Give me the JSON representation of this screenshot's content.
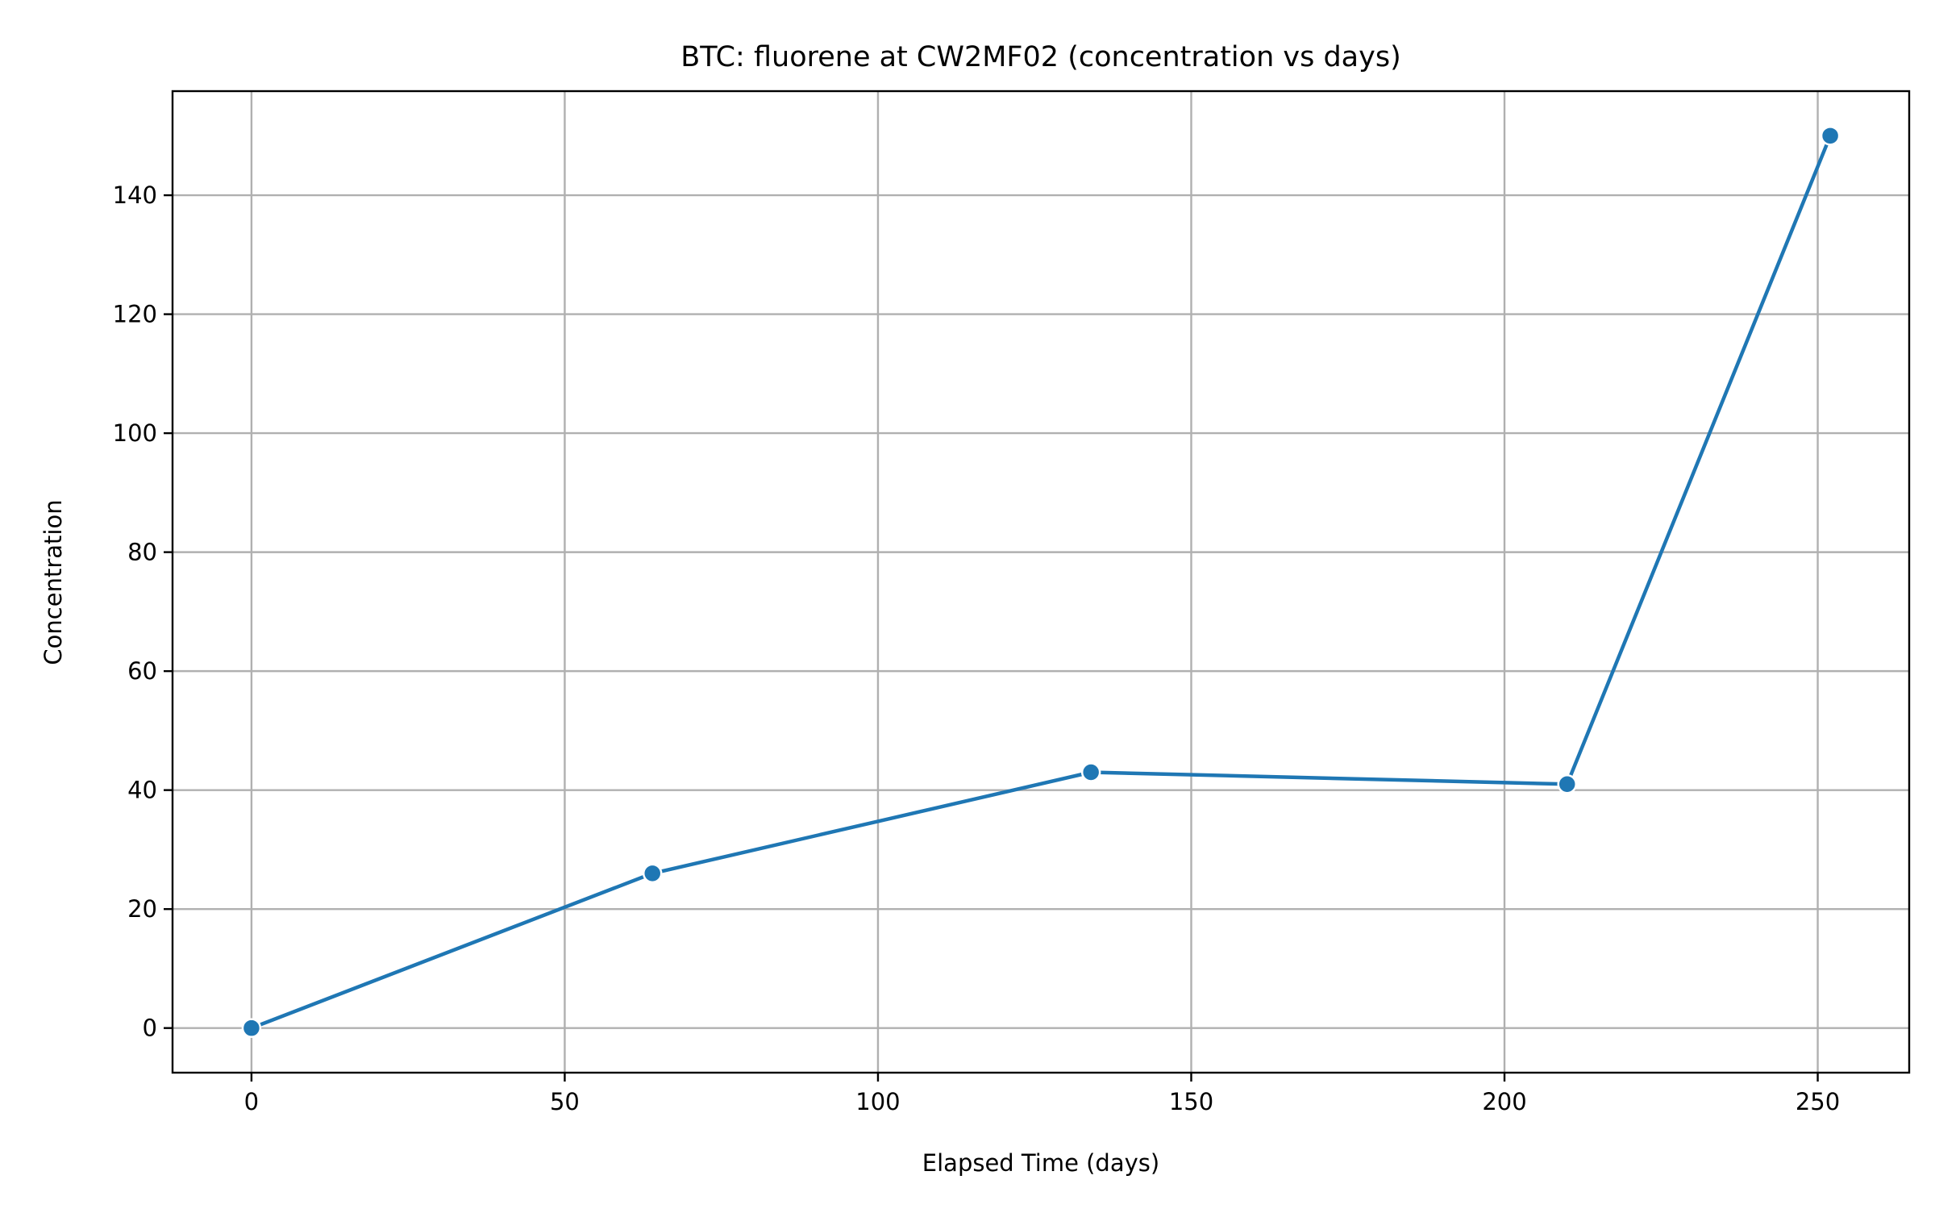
{
  "chart_data": {
    "type": "line",
    "title": "BTC: fluorene at CW2MF02 (concentration vs days)",
    "xlabel": "Elapsed Time (days)",
    "ylabel": "Concentration",
    "xlim": [
      -12.6,
      264.6
    ],
    "ylim": [
      -7.5,
      157.5
    ],
    "xticks": [
      0,
      50,
      100,
      150,
      200,
      250
    ],
    "yticks": [
      0,
      20,
      40,
      60,
      80,
      100,
      120,
      140
    ],
    "grid": true,
    "legend": "none",
    "series": [
      {
        "color": "#1f77b4",
        "marker": "circle",
        "x": [
          0,
          64,
          134,
          210,
          252
        ],
        "y": [
          0,
          26,
          43,
          41,
          150
        ]
      }
    ]
  }
}
